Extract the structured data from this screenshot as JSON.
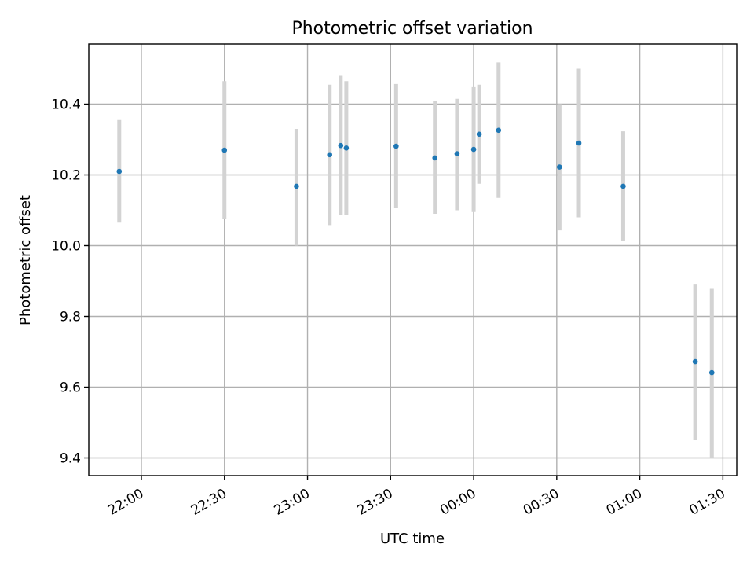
{
  "chart_data": {
    "type": "scatter",
    "title": "Photometric offset variation",
    "xlabel": "UTC time",
    "ylabel": "Photometric offset",
    "xlim": [
      "21:41",
      "01:35"
    ],
    "ylim": [
      9.35,
      10.57
    ],
    "grid": true,
    "x_ticks": [
      "22:00",
      "22:30",
      "23:00",
      "23:30",
      "00:00",
      "00:30",
      "01:00",
      "01:30"
    ],
    "y_ticks": [
      "9.4",
      "9.6",
      "9.8",
      "10.0",
      "10.2",
      "10.4"
    ],
    "y_tick_values": [
      9.4,
      9.6,
      9.8,
      10.0,
      10.2,
      10.4
    ],
    "series": [
      {
        "marker_color": "#1f77b4",
        "errorbar_color": "#d3d3d3",
        "points": [
          {
            "x": "21:52",
            "y": 10.21,
            "low": 10.065,
            "high": 10.355
          },
          {
            "x": "22:30",
            "y": 10.27,
            "low": 10.075,
            "high": 10.465
          },
          {
            "x": "22:56",
            "y": 10.168,
            "low": 10.0,
            "high": 10.33
          },
          {
            "x": "23:08",
            "y": 10.257,
            "low": 10.058,
            "high": 10.455
          },
          {
            "x": "23:12",
            "y": 10.283,
            "low": 10.087,
            "high": 10.48
          },
          {
            "x": "23:14",
            "y": 10.276,
            "low": 10.087,
            "high": 10.465
          },
          {
            "x": "23:32",
            "y": 10.281,
            "low": 10.107,
            "high": 10.457
          },
          {
            "x": "23:46",
            "y": 10.248,
            "low": 10.09,
            "high": 10.41
          },
          {
            "x": "23:54",
            "y": 10.26,
            "low": 10.1,
            "high": 10.415
          },
          {
            "x": "00:00",
            "y": 10.272,
            "low": 10.095,
            "high": 10.448
          },
          {
            "x": "00:02",
            "y": 10.315,
            "low": 10.175,
            "high": 10.455
          },
          {
            "x": "00:09",
            "y": 10.326,
            "low": 10.135,
            "high": 10.518
          },
          {
            "x": "00:31",
            "y": 10.222,
            "low": 10.043,
            "high": 10.4
          },
          {
            "x": "00:38",
            "y": 10.29,
            "low": 10.08,
            "high": 10.5
          },
          {
            "x": "00:54",
            "y": 10.168,
            "low": 10.013,
            "high": 10.323
          },
          {
            "x": "01:20",
            "y": 9.672,
            "low": 9.45,
            "high": 9.892
          },
          {
            "x": "01:26",
            "y": 9.641,
            "low": 9.4,
            "high": 9.88
          }
        ]
      }
    ]
  }
}
